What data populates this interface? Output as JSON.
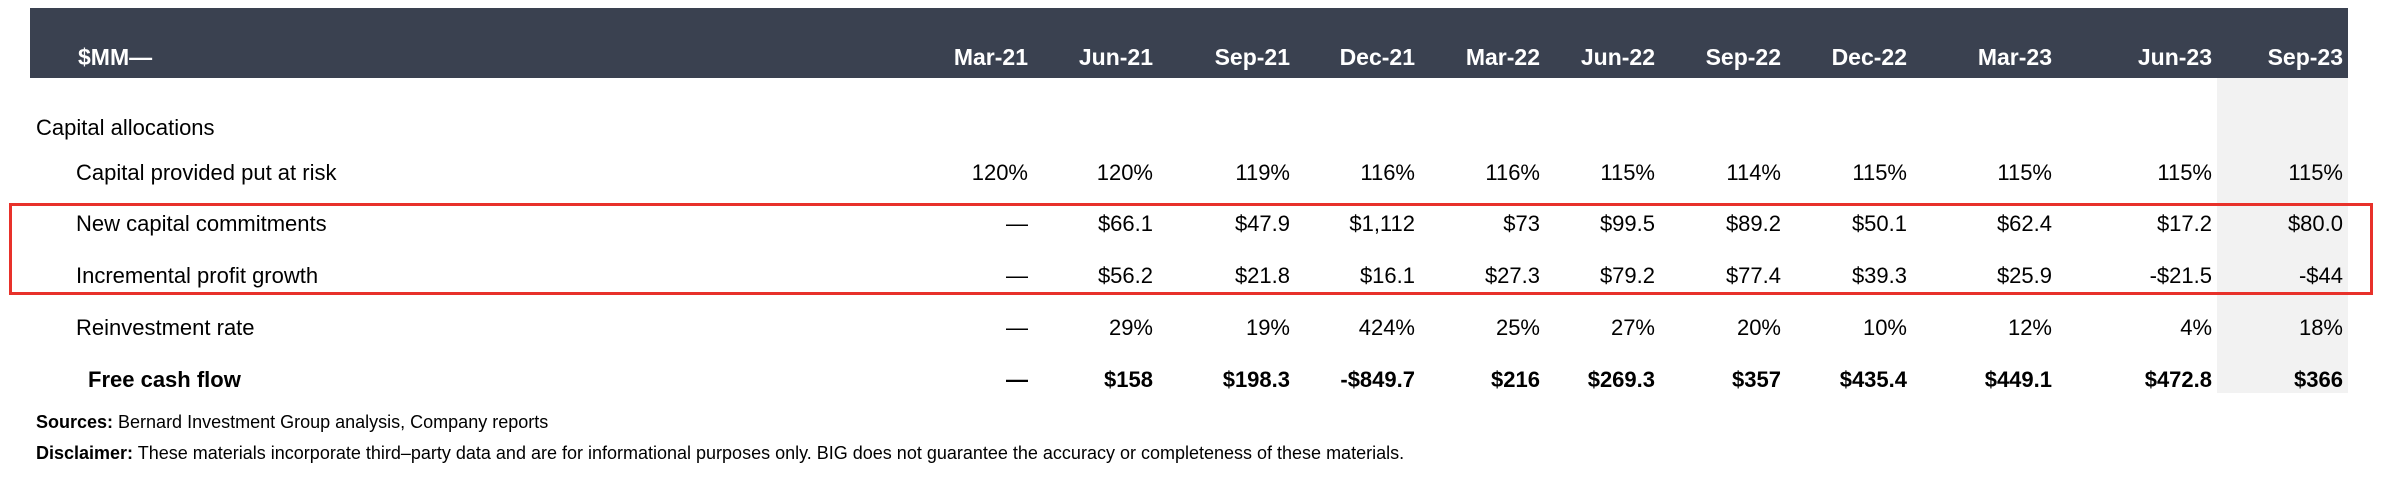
{
  "header": {
    "unit_label": "$MM—",
    "columns": [
      "Mar-21",
      "Jun-21",
      "Sep-21",
      "Dec-21",
      "Mar-22",
      "Jun-22",
      "Sep-22",
      "Dec-22",
      "Mar-23",
      "Jun-23",
      "Sep-23"
    ]
  },
  "section_label": "Capital allocations",
  "rows": [
    {
      "label": "Capital provided put at risk",
      "bold": false,
      "values": [
        "120%",
        "120%",
        "119%",
        "116%",
        "116%",
        "115%",
        "114%",
        "115%",
        "115%",
        "115%",
        "115%"
      ]
    },
    {
      "label": "New capital commitments",
      "bold": false,
      "highlighted": true,
      "values": [
        "—",
        "$66.1",
        "$47.9",
        "$1,112",
        "$73",
        "$99.5",
        "$89.2",
        "$50.1",
        "$62.4",
        "$17.2",
        "$80.0"
      ]
    },
    {
      "label": "Incremental profit growth",
      "bold": false,
      "highlighted": true,
      "values": [
        "—",
        "$56.2",
        "$21.8",
        "$16.1",
        "$27.3",
        "$79.2",
        "$77.4",
        "$39.3",
        "$25.9",
        "-$21.5",
        "-$44"
      ]
    },
    {
      "label": "Reinvestment rate",
      "bold": false,
      "values": [
        "—",
        "29%",
        "19%",
        "424%",
        "25%",
        "27%",
        "20%",
        "10%",
        "12%",
        "4%",
        "18%"
      ]
    },
    {
      "label": "Free cash flow",
      "bold": true,
      "values": [
        "—",
        "$158",
        "$198.3",
        "-$849.7",
        "$216",
        "$269.3",
        "$357",
        "$435.4",
        "$449.1",
        "$472.8",
        "$366"
      ]
    }
  ],
  "footer": {
    "sources_label": "Sources:",
    "sources_text": " Bernard Investment Group analysis, Company reports",
    "disclaimer_label": "Disclaimer:",
    "disclaimer_text": " These materials incorporate third–party data and are for informational purposes only. BIG does not guarantee the accuracy or completeness of these materials."
  },
  "colors": {
    "header_bg": "#3a4150",
    "highlight_border": "#e8312a",
    "shaded_column": "#f2f2f2"
  }
}
